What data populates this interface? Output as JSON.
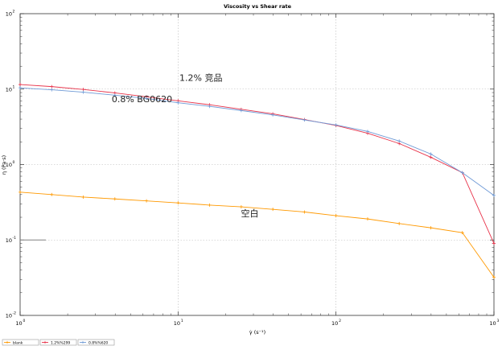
{
  "chart_data": {
    "type": "line",
    "title": "Viscosity vs Shear rate",
    "xlabel": "γ̇ (s⁻¹)",
    "ylabel": "η (Pa·s)",
    "x_scale": "log",
    "y_scale": "log",
    "xlim": [
      1,
      1000
    ],
    "ylim": [
      0.01,
      100
    ],
    "grid": true,
    "x_ticks": [
      {
        "value": 1,
        "base": "10",
        "exp": "0"
      },
      {
        "value": 10,
        "base": "10",
        "exp": "1"
      },
      {
        "value": 100,
        "base": "10",
        "exp": "2"
      },
      {
        "value": 1000,
        "base": "10",
        "exp": "3"
      }
    ],
    "y_ticks": [
      {
        "value": 0.01,
        "base": "10",
        "exp": "-2"
      },
      {
        "value": 0.1,
        "base": "10",
        "exp": "-1"
      },
      {
        "value": 1,
        "base": "10",
        "exp": "0"
      },
      {
        "value": 10,
        "base": "10",
        "exp": "1"
      },
      {
        "value": 100,
        "base": "10",
        "exp": "2"
      }
    ],
    "legend_position": "bottom-left",
    "series": [
      {
        "name": "blank",
        "color": "#ff9900",
        "marker": "cross",
        "x": [
          1,
          1.585,
          2.512,
          3.981,
          6.31,
          10,
          15.85,
          25.12,
          39.81,
          63.1,
          100,
          158.5,
          251.2,
          398.1,
          631,
          1000
        ],
        "y": [
          0.43,
          0.4,
          0.37,
          0.35,
          0.33,
          0.31,
          0.29,
          0.275,
          0.255,
          0.235,
          0.21,
          0.19,
          0.165,
          0.145,
          0.125,
          0.032
        ]
      },
      {
        "name": "1.2%%299",
        "color": "#e8334a",
        "marker": "cross",
        "x": [
          1,
          1.585,
          2.512,
          3.981,
          6.31,
          10,
          15.85,
          25.12,
          39.81,
          63.1,
          100,
          158.5,
          251.2,
          398.1,
          631,
          1000
        ],
        "y": [
          11.5,
          10.8,
          9.9,
          8.9,
          7.9,
          7.0,
          6.2,
          5.4,
          4.7,
          3.95,
          3.3,
          2.6,
          1.9,
          1.25,
          0.78,
          0.09
        ]
      },
      {
        "name": "0.8%%620",
        "color": "#6f9ad6",
        "marker": "cross",
        "x": [
          1,
          1.585,
          2.512,
          3.981,
          6.31,
          10,
          15.85,
          25.12,
          39.81,
          63.1,
          100,
          158.5,
          251.2,
          398.1,
          631,
          1000
        ],
        "y": [
          10.4,
          9.8,
          9.1,
          8.3,
          7.5,
          6.6,
          5.9,
          5.2,
          4.55,
          3.9,
          3.35,
          2.75,
          2.05,
          1.38,
          0.78,
          0.39
        ]
      }
    ],
    "annotations": [
      {
        "text": "1.2% 竞品",
        "x": 10.2,
        "y": 12.8
      },
      {
        "text": "0.8% BG0620",
        "x": 3.8,
        "y": 6.7
      },
      {
        "text": "空白",
        "x": 25.0,
        "y": 0.205
      }
    ],
    "side_mark": {
      "x": 1.0,
      "y": 0.1
    }
  }
}
